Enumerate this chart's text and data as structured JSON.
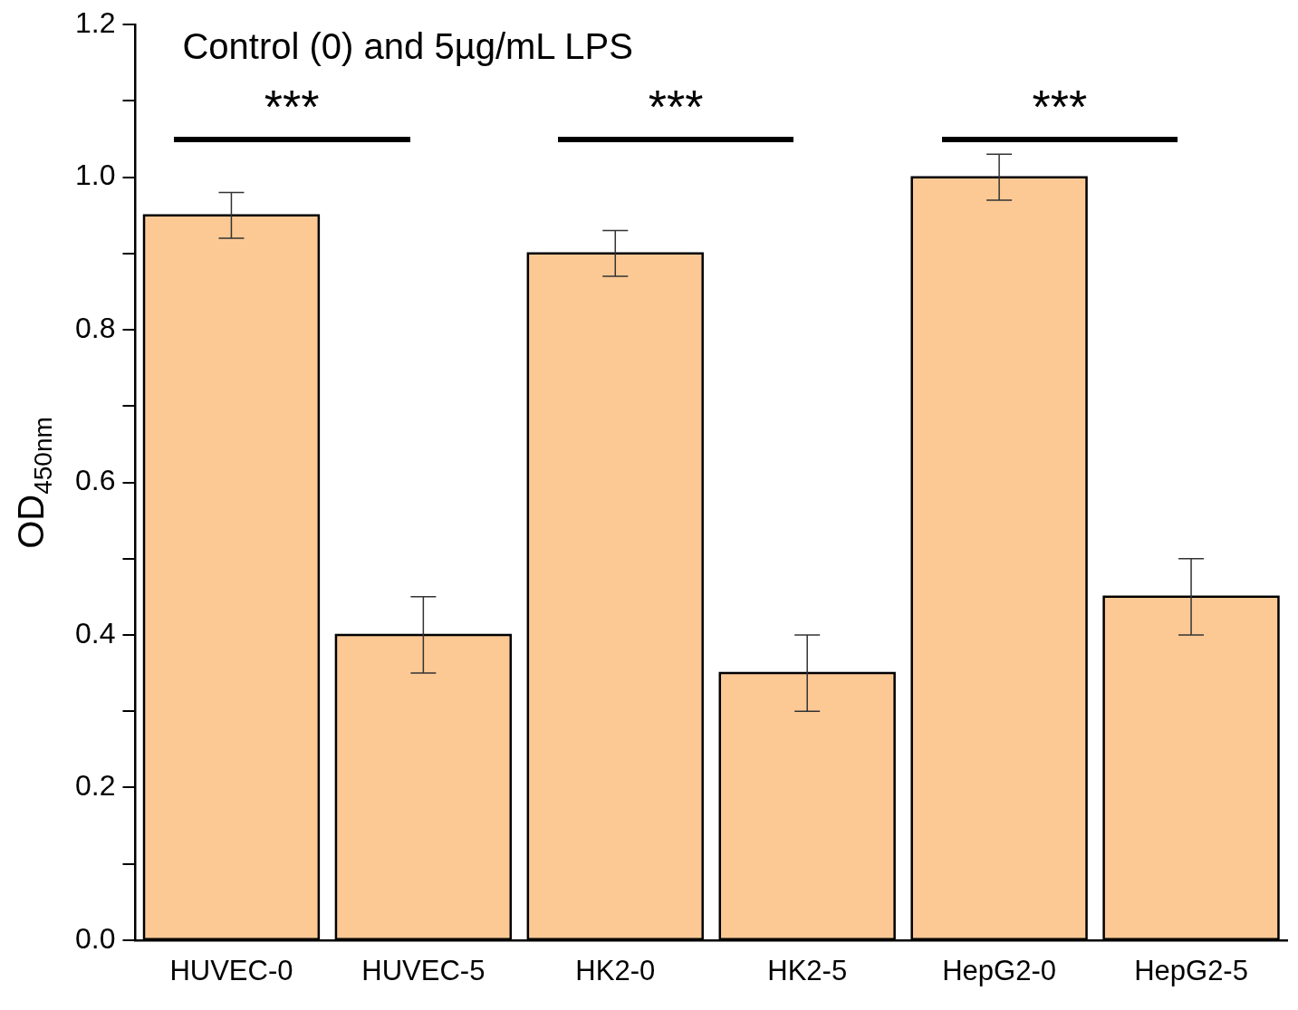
{
  "chart_data": {
    "type": "bar",
    "title": "Control (0) and 5µg/mL LPS",
    "ylabel": "OD$_{450nm}$",
    "categories": [
      "HUVEC-0",
      "HUVEC-5",
      "HK2-0",
      "HK2-5",
      "HepG2-0",
      "HepG2-5"
    ],
    "values": [
      0.95,
      0.4,
      0.9,
      0.35,
      1.0,
      0.45
    ],
    "errors": [
      0.03,
      0.05,
      0.03,
      0.05,
      0.03,
      0.05
    ],
    "color": "#fcc995",
    "ylim": [
      0,
      1.2
    ],
    "yticks": [
      {
        "value": 0,
        "label": "0.0"
      },
      {
        "value": 0.1,
        "label": null
      },
      {
        "value": 0.2,
        "label": "0.2"
      },
      {
        "value": 0.3,
        "label": null
      },
      {
        "value": 0.4,
        "label": "0.4"
      },
      {
        "value": 0.5,
        "label": null
      },
      {
        "value": 0.6,
        "label": "0.6"
      },
      {
        "value": 0.7,
        "label": null
      },
      {
        "value": 0.8,
        "label": "0.8"
      },
      {
        "value": 0.9,
        "label": null
      },
      {
        "value": 1.0,
        "label": "1.0"
      },
      {
        "value": 1.1,
        "label": null
      },
      {
        "value": 1.2,
        "label": "1.2"
      }
    ],
    "annotations": [
      "***",
      "***",
      "***"
    ],
    "grid": false,
    "legend": false
  }
}
